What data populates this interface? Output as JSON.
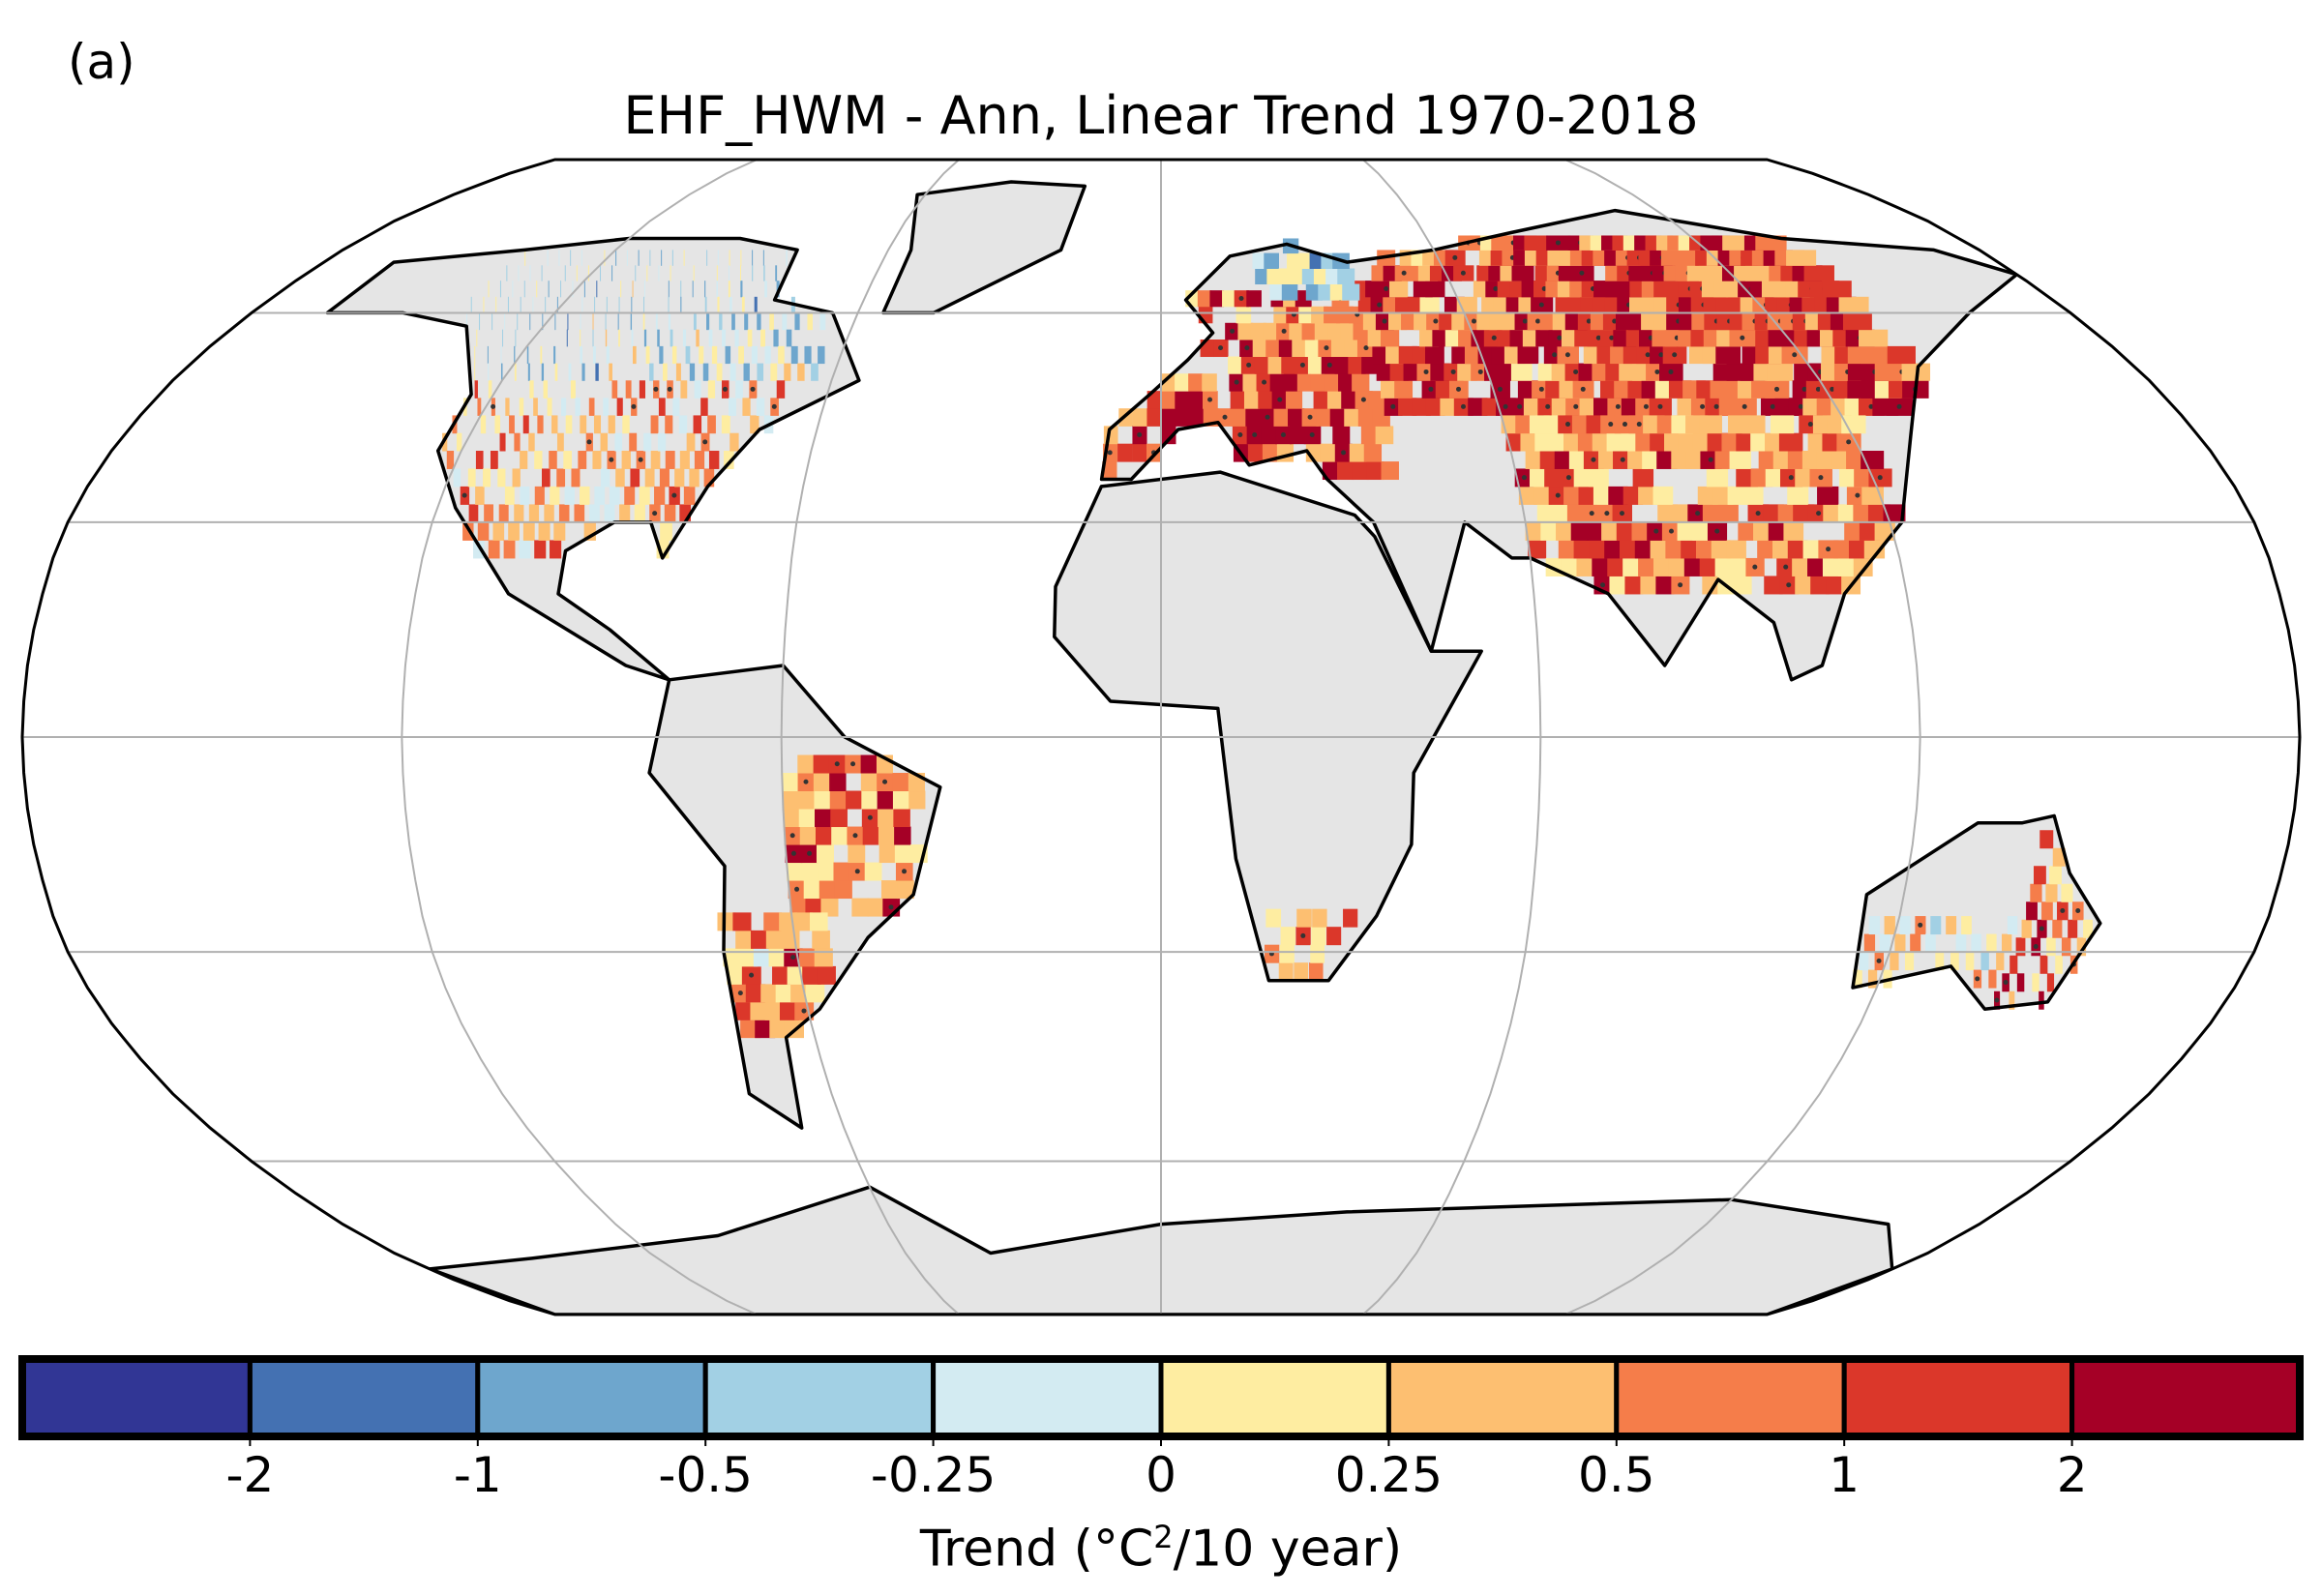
{
  "panel_label": "(a)",
  "title": "EHF_HWM - Ann, Linear Trend 1970-2018",
  "chart_data": {
    "type": "heatmap",
    "projection": "Robinson",
    "title": "EHF_HWM - Ann, Linear Trend 1970-2018",
    "gridlines": {
      "parallels": [
        -60,
        -30,
        0,
        30,
        60
      ],
      "meridians": [
        -120,
        -60,
        0,
        60,
        120
      ]
    },
    "colorbar": {
      "ticks": [
        "-2",
        "-1",
        "-0.5",
        "-0.25",
        "0",
        "0.25",
        "0.5",
        "1",
        "2"
      ],
      "colors": [
        "#313695",
        "#4471b2",
        "#6ea6cd",
        "#a2d0e4",
        "#d3ebf2",
        "#feeda1",
        "#fdbf71",
        "#f57d4a",
        "#db372a",
        "#a50026"
      ],
      "label_prefix": "Trend (°C",
      "label_sup": "2",
      "label_suffix": "/10 year)"
    },
    "no_data_color": "#e5e5e5",
    "stippling": "significant trend"
  }
}
